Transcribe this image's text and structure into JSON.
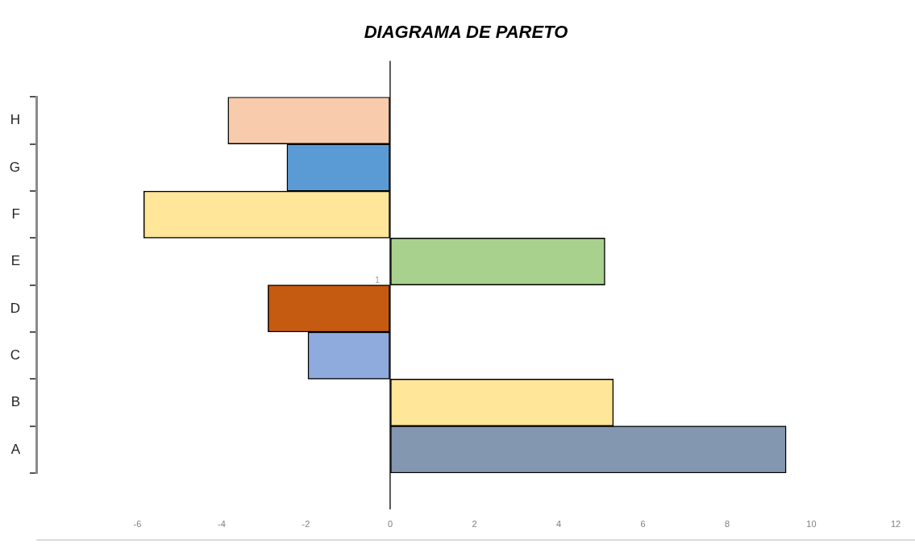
{
  "chart_data": {
    "type": "bar",
    "orientation": "horizontal",
    "title": "DIAGRAMA DE PARETO",
    "categories": [
      "H",
      "G",
      "F",
      "E",
      "D",
      "C",
      "B",
      "A"
    ],
    "values": [
      -3.85,
      -2.45,
      -5.85,
      5.1,
      -2.9,
      -1.95,
      5.3,
      9.4
    ],
    "colors": [
      "#f8cbad",
      "#5b9bd5",
      "#ffe699",
      "#a9d18e",
      "#c55a11",
      "#8faadc",
      "#ffe699",
      "#8497b0"
    ],
    "xlim": [
      -8.4,
      12
    ],
    "xticks": [
      -6,
      -4,
      -2,
      0,
      2,
      4,
      6,
      8,
      10,
      12
    ],
    "annotations": [
      "1"
    ]
  }
}
